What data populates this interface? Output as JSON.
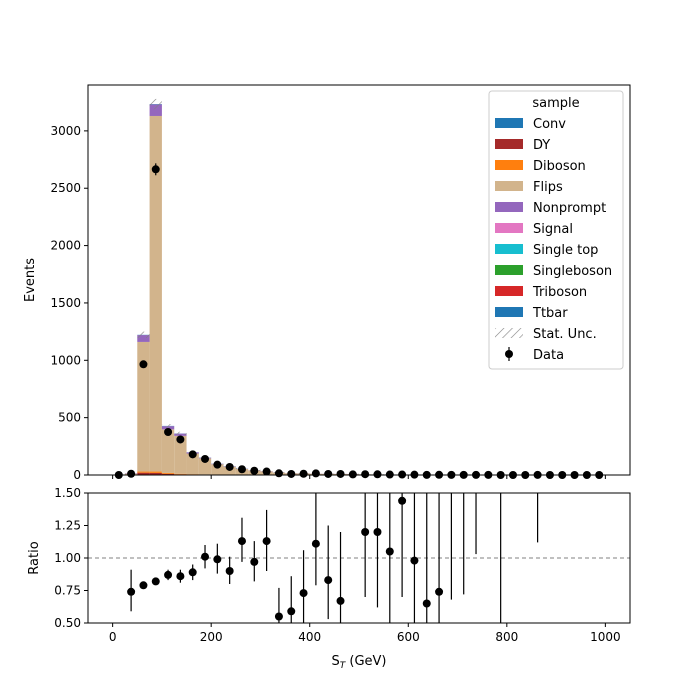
{
  "chart_data": [
    {
      "type": "bar",
      "subtype": "stacked-histogram-with-data-points",
      "ylabel": "Events",
      "xlim": [
        -50,
        1050
      ],
      "ylim": [
        0,
        3400
      ],
      "yticks": [
        0,
        500,
        1000,
        1500,
        2000,
        2500,
        3000
      ],
      "xticks": [
        0,
        200,
        400,
        600,
        800,
        1000
      ],
      "bin_edges": [
        0,
        25,
        50,
        75,
        100,
        125,
        150,
        175,
        200,
        225,
        250,
        275,
        300,
        325,
        350,
        375,
        400,
        425,
        450,
        475,
        500,
        525,
        550,
        575,
        600,
        625,
        650,
        675,
        700,
        725,
        750,
        775,
        800,
        825,
        850,
        875,
        900,
        925,
        950,
        975,
        1000
      ],
      "legend": {
        "title": "sample",
        "placement": "upper right",
        "entries": [
          {
            "label": "Conv",
            "color": "#1f77b4",
            "kind": "patch"
          },
          {
            "label": "DY",
            "color": "#a52a2a",
            "kind": "patch"
          },
          {
            "label": "Diboson",
            "color": "#ff7f0e",
            "kind": "patch"
          },
          {
            "label": "Flips",
            "color": "#d2b48c",
            "kind": "patch"
          },
          {
            "label": "Nonprompt",
            "color": "#9467bd",
            "kind": "patch"
          },
          {
            "label": "Signal",
            "color": "#e377c2",
            "kind": "patch"
          },
          {
            "label": "Single top",
            "color": "#17becf",
            "kind": "patch"
          },
          {
            "label": "Singleboson",
            "color": "#2ca02c",
            "kind": "patch"
          },
          {
            "label": "Triboson",
            "color": "#d62728",
            "kind": "patch"
          },
          {
            "label": "Ttbar",
            "color": "#1f77b4",
            "kind": "patch"
          },
          {
            "label": "Stat. Unc.",
            "color": "#808080",
            "kind": "hatch"
          },
          {
            "label": "Data",
            "color": "#000000",
            "kind": "errorbar"
          }
        ]
      },
      "series": [
        {
          "name": "Conv",
          "values": [
            0,
            0,
            0,
            0,
            0,
            0,
            0,
            0,
            0,
            0,
            0,
            0,
            0,
            0,
            0,
            0,
            0,
            0,
            0,
            0,
            0,
            0,
            0,
            0,
            0,
            0,
            0,
            0,
            0,
            0,
            0,
            0,
            0,
            0,
            0,
            0,
            0,
            0,
            0,
            0
          ]
        },
        {
          "name": "DY",
          "values": [
            0,
            0,
            20,
            18,
            10,
            6,
            3,
            2,
            2,
            1,
            1,
            1,
            0,
            0,
            0,
            0,
            0,
            0,
            0,
            0,
            0,
            0,
            0,
            0,
            0,
            0,
            0,
            0,
            0,
            0,
            0,
            0,
            0,
            0,
            0,
            0,
            0,
            0,
            0,
            0
          ]
        },
        {
          "name": "Diboson",
          "values": [
            0,
            2,
            10,
            12,
            8,
            5,
            4,
            3,
            2,
            2,
            2,
            1,
            1,
            1,
            1,
            1,
            1,
            1,
            1,
            1,
            0,
            0,
            0,
            0,
            0,
            0,
            0,
            0,
            0,
            0,
            0,
            0,
            0,
            0,
            0,
            0,
            0,
            0,
            0,
            0
          ]
        },
        {
          "name": "Flips",
          "values": [
            0,
            10,
            1130,
            3100,
            380,
            330,
            180,
            140,
            90,
            70,
            50,
            37,
            30,
            20,
            14,
            12,
            10,
            9,
            8,
            7,
            6,
            5,
            4,
            3,
            3,
            2,
            2,
            1,
            1,
            1,
            1,
            0,
            0,
            0,
            0,
            0,
            0,
            0,
            0,
            0
          ]
        },
        {
          "name": "Nonprompt",
          "values": [
            0,
            3,
            60,
            100,
            28,
            20,
            10,
            6,
            4,
            3,
            2,
            2,
            2,
            1,
            1,
            1,
            1,
            1,
            1,
            1,
            0,
            0,
            0,
            0,
            0,
            0,
            0,
            0,
            0,
            0,
            0,
            0,
            0,
            0,
            0,
            0,
            0,
            0,
            0,
            0
          ]
        },
        {
          "name": "Signal",
          "values": [
            0,
            0,
            0,
            0,
            0,
            0,
            0,
            0,
            0,
            0,
            0,
            0,
            0,
            0,
            0,
            0,
            0,
            0,
            0,
            0,
            0,
            0,
            0,
            0,
            0,
            0,
            0,
            0,
            0,
            0,
            0,
            0,
            0,
            0,
            0,
            0,
            0,
            0,
            0,
            0
          ]
        },
        {
          "name": "Single top",
          "values": [
            0,
            0,
            0,
            0,
            0,
            0,
            0,
            0,
            0,
            0,
            0,
            0,
            0,
            0,
            0,
            0,
            0,
            0,
            0,
            0,
            0,
            0,
            0,
            0,
            0,
            0,
            0,
            0,
            0,
            0,
            0,
            0,
            0,
            0,
            0,
            0,
            0,
            0,
            0,
            0
          ]
        },
        {
          "name": "Singleboson",
          "values": [
            0,
            0,
            0,
            0,
            0,
            0,
            0,
            0,
            0,
            0,
            0,
            0,
            0,
            0,
            0,
            0,
            0,
            0,
            0,
            0,
            0,
            0,
            0,
            0,
            0,
            0,
            0,
            0,
            0,
            0,
            0,
            0,
            0,
            0,
            0,
            0,
            0,
            0,
            0,
            0
          ]
        },
        {
          "name": "Triboson",
          "values": [
            0,
            0,
            0,
            0,
            0,
            0,
            0,
            0,
            0,
            0,
            0,
            0,
            0,
            0,
            0,
            0,
            0,
            0,
            0,
            0,
            0,
            0,
            0,
            0,
            0,
            0,
            0,
            0,
            0,
            0,
            0,
            0,
            0,
            0,
            0,
            0,
            0,
            0,
            0,
            0
          ]
        },
        {
          "name": "Ttbar",
          "values": [
            0,
            0,
            2,
            3,
            2,
            1,
            1,
            1,
            1,
            1,
            1,
            0,
            0,
            0,
            0,
            0,
            0,
            0,
            0,
            0,
            0,
            0,
            0,
            0,
            0,
            0,
            0,
            0,
            0,
            0,
            0,
            0,
            0,
            0,
            0,
            0,
            0,
            0,
            0,
            0
          ]
        }
      ],
      "data_points": {
        "name": "Data",
        "x": [
          12.5,
          37.5,
          62.5,
          87.5,
          112.5,
          137.5,
          162.5,
          187.5,
          212.5,
          237.5,
          262.5,
          287.5,
          312.5,
          337.5,
          362.5,
          387.5,
          412.5,
          437.5,
          462.5,
          487.5,
          512.5,
          537.5,
          562.5,
          587.5,
          612.5,
          637.5,
          662.5,
          687.5,
          712.5,
          737.5,
          762.5,
          787.5,
          812.5,
          837.5,
          862.5,
          887.5,
          912.5,
          937.5,
          962.5,
          987.5
        ],
        "y": [
          0,
          11,
          965,
          2665,
          375,
          310,
          180,
          140,
          90,
          70,
          50,
          37,
          30,
          15,
          9,
          11,
          14,
          9,
          9,
          5,
          7,
          6,
          4,
          4,
          3,
          1,
          2,
          1,
          1,
          1,
          1,
          0,
          0,
          0,
          1,
          0,
          0,
          0,
          0,
          0
        ],
        "yerr": [
          0,
          3.3,
          31,
          52,
          19,
          18,
          13,
          12,
          9.5,
          8.4,
          7.1,
          6.1,
          5.5,
          3.9,
          3,
          3.3,
          3.7,
          3,
          3,
          2.2,
          2.6,
          2.4,
          2,
          2,
          1.7,
          1,
          1.4,
          1,
          1,
          1,
          1,
          0,
          0,
          0,
          1,
          0,
          0,
          0,
          0,
          0
        ]
      }
    },
    {
      "type": "scatter",
      "subtype": "ratio-with-errorbars",
      "xlabel": "S_T (GeV)",
      "ylabel": "Ratio",
      "xlim": [
        -50,
        1050
      ],
      "ylim": [
        0.5,
        1.5
      ],
      "yticks": [
        0.5,
        0.75,
        1.0,
        1.25,
        1.5
      ],
      "yticklabels": [
        "0.50",
        "0.75",
        "1.00",
        "1.25",
        "1.50"
      ],
      "xticks": [
        0,
        200,
        400,
        600,
        800,
        1000
      ],
      "reference_line": 1.0,
      "x": [
        37.5,
        62.5,
        87.5,
        112.5,
        137.5,
        162.5,
        187.5,
        212.5,
        237.5,
        262.5,
        287.5,
        312.5,
        337.5,
        362.5,
        387.5,
        412.5,
        437.5,
        462.5,
        512.5,
        537.5,
        562.5,
        587.5,
        612.5,
        637.5,
        662.5
      ],
      "y": [
        0.74,
        0.79,
        0.82,
        0.87,
        0.86,
        0.89,
        1.01,
        0.99,
        0.9,
        1.13,
        0.97,
        1.13,
        0.55,
        0.59,
        0.73,
        1.11,
        0.83,
        0.67,
        1.2,
        1.2,
        1.05,
        1.44,
        0.98,
        0.65,
        0.74
      ],
      "ylow": [
        0.59,
        0.78,
        0.81,
        0.83,
        0.81,
        0.83,
        0.92,
        0.88,
        0.8,
        0.97,
        0.82,
        0.9,
        0.4,
        0.41,
        0.48,
        0.79,
        0.53,
        0.32,
        0.7,
        0.62,
        0.5,
        0.7,
        0.4,
        0.2,
        0.3
      ],
      "yhigh": [
        0.91,
        0.8,
        0.83,
        0.91,
        0.91,
        0.95,
        1.1,
        1.11,
        1.01,
        1.31,
        1.13,
        1.37,
        0.77,
        0.86,
        1.06,
        1.5,
        1.25,
        1.2,
        1.5,
        1.5,
        1.5,
        1.5,
        1.5,
        1.5,
        1.5
      ],
      "offscale_segments": [
        {
          "x": 687.5,
          "ylow": 0.68,
          "yhigh": 1.5
        },
        {
          "x": 712.5,
          "ylow": 0.72,
          "yhigh": 1.5
        },
        {
          "x": 737.5,
          "ylow": 1.03,
          "yhigh": 1.5
        },
        {
          "x": 787.5,
          "ylow": 0.5,
          "yhigh": 1.5
        },
        {
          "x": 862.5,
          "ylow": 1.12,
          "yhigh": 1.5
        }
      ]
    }
  ]
}
